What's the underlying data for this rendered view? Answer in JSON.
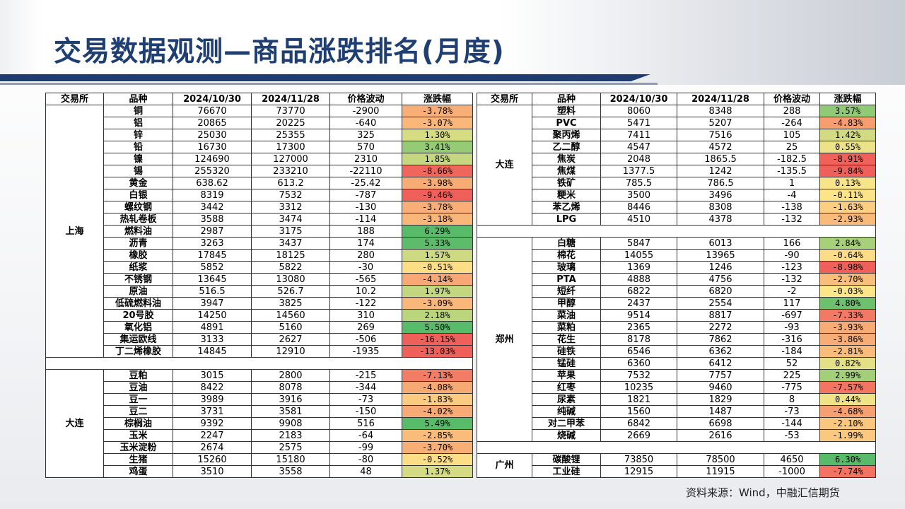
{
  "title": "交易数据观测—商品涨跌排名(月度)",
  "source": "资料来源：Wind，中融汇信期货",
  "headers": [
    "交易所",
    "品种",
    "2024/10/30",
    "2024/11/28",
    "价格波动",
    "涨跌幅"
  ],
  "colors": {
    "up": "#e84c3d",
    "down": "#57bb6a",
    "title": "#1f3f73"
  },
  "left": {
    "groups": [
      {
        "exchange": "上海",
        "rows": [
          {
            "name": "铜",
            "p1": "76670",
            "p2": "73770",
            "diff": "-2900",
            "chg": "-3.78%",
            "pct": -3.78
          },
          {
            "name": "铝",
            "p1": "20865",
            "p2": "20225",
            "diff": "-640",
            "chg": "-3.07%",
            "pct": -3.07
          },
          {
            "name": "锌",
            "p1": "25030",
            "p2": "25355",
            "diff": "325",
            "chg": "1.30%",
            "pct": 1.3
          },
          {
            "name": "铅",
            "p1": "16730",
            "p2": "17300",
            "diff": "570",
            "chg": "3.41%",
            "pct": 3.41
          },
          {
            "name": "镍",
            "p1": "124690",
            "p2": "127000",
            "diff": "2310",
            "chg": "1.85%",
            "pct": 1.85
          },
          {
            "name": "锡",
            "p1": "255320",
            "p2": "233210",
            "diff": "-22110",
            "chg": "-8.66%",
            "pct": -8.66
          },
          {
            "name": "黄金",
            "p1": "638.62",
            "p2": "613.2",
            "diff": "-25.42",
            "chg": "-3.98%",
            "pct": -3.98
          },
          {
            "name": "白银",
            "p1": "8319",
            "p2": "7532",
            "diff": "-787",
            "chg": "-9.46%",
            "pct": -9.46
          },
          {
            "name": "螺纹钢",
            "p1": "3442",
            "p2": "3312",
            "diff": "-130",
            "chg": "-3.78%",
            "pct": -3.78
          },
          {
            "name": "热轧卷板",
            "p1": "3588",
            "p2": "3474",
            "diff": "-114",
            "chg": "-3.18%",
            "pct": -3.18
          },
          {
            "name": "燃料油",
            "p1": "2987",
            "p2": "3175",
            "diff": "188",
            "chg": "6.29%",
            "pct": 6.29
          },
          {
            "name": "沥青",
            "p1": "3263",
            "p2": "3437",
            "diff": "174",
            "chg": "5.33%",
            "pct": 5.33
          },
          {
            "name": "橡胶",
            "p1": "17845",
            "p2": "18125",
            "diff": "280",
            "chg": "1.57%",
            "pct": 1.57
          },
          {
            "name": "纸浆",
            "p1": "5852",
            "p2": "5822",
            "diff": "-30",
            "chg": "-0.51%",
            "pct": -0.51
          },
          {
            "name": "不锈钢",
            "p1": "13645",
            "p2": "13080",
            "diff": "-565",
            "chg": "-4.14%",
            "pct": -4.14
          },
          {
            "name": "原油",
            "p1": "516.5",
            "p2": "526.7",
            "diff": "10.2",
            "chg": "1.97%",
            "pct": 1.97
          },
          {
            "name": "低硫燃料油",
            "p1": "3947",
            "p2": "3825",
            "diff": "-122",
            "chg": "-3.09%",
            "pct": -3.09
          },
          {
            "name": "20号胶",
            "p1": "14250",
            "p2": "14560",
            "diff": "310",
            "chg": "2.18%",
            "pct": 2.18
          },
          {
            "name": "氧化铝",
            "p1": "4891",
            "p2": "5160",
            "diff": "269",
            "chg": "5.50%",
            "pct": 5.5
          },
          {
            "name": "集运欧线",
            "p1": "3133",
            "p2": "2627",
            "diff": "-506",
            "chg": "-16.15%",
            "pct": -16.15
          },
          {
            "name": "丁二烯橡胶",
            "p1": "14845",
            "p2": "12910",
            "diff": "-1935",
            "chg": "-13.03%",
            "pct": -13.03
          }
        ]
      },
      {
        "exchange": "大连",
        "rows": [
          {
            "name": "豆粕",
            "p1": "3015",
            "p2": "2800",
            "diff": "-215",
            "chg": "-7.13%",
            "pct": -7.13
          },
          {
            "name": "豆油",
            "p1": "8422",
            "p2": "8078",
            "diff": "-344",
            "chg": "-4.08%",
            "pct": -4.08
          },
          {
            "name": "豆一",
            "p1": "3989",
            "p2": "3916",
            "diff": "-73",
            "chg": "-1.83%",
            "pct": -1.83
          },
          {
            "name": "豆二",
            "p1": "3731",
            "p2": "3581",
            "diff": "-150",
            "chg": "-4.02%",
            "pct": -4.02
          },
          {
            "name": "棕榈油",
            "p1": "9392",
            "p2": "9908",
            "diff": "516",
            "chg": "5.49%",
            "pct": 5.49
          },
          {
            "name": "玉米",
            "p1": "2247",
            "p2": "2183",
            "diff": "-64",
            "chg": "-2.85%",
            "pct": -2.85
          },
          {
            "name": "玉米淀粉",
            "p1": "2674",
            "p2": "2575",
            "diff": "-99",
            "chg": "-3.70%",
            "pct": -3.7
          },
          {
            "name": "生猪",
            "p1": "15260",
            "p2": "15180",
            "diff": "-80",
            "chg": "-0.52%",
            "pct": -0.52
          },
          {
            "name": "鸡蛋",
            "p1": "3510",
            "p2": "3558",
            "diff": "48",
            "chg": "1.37%",
            "pct": 1.37
          }
        ]
      }
    ]
  },
  "right": {
    "groups": [
      {
        "exchange": "大连",
        "rows": [
          {
            "name": "塑料",
            "p1": "8060",
            "p2": "8348",
            "diff": "288",
            "chg": "3.57%",
            "pct": 3.57
          },
          {
            "name": "PVC",
            "p1": "5471",
            "p2": "5207",
            "diff": "-264",
            "chg": "-4.83%",
            "pct": -4.83
          },
          {
            "name": "聚丙烯",
            "p1": "7411",
            "p2": "7516",
            "diff": "105",
            "chg": "1.42%",
            "pct": 1.42
          },
          {
            "name": "乙二醇",
            "p1": "4547",
            "p2": "4572",
            "diff": "25",
            "chg": "0.55%",
            "pct": 0.55
          },
          {
            "name": "焦炭",
            "p1": "2048",
            "p2": "1865.5",
            "diff": "-182.5",
            "chg": "-8.91%",
            "pct": -8.91
          },
          {
            "name": "焦煤",
            "p1": "1377.5",
            "p2": "1242",
            "diff": "-135.5",
            "chg": "-9.84%",
            "pct": -9.84
          },
          {
            "name": "铁矿",
            "p1": "785.5",
            "p2": "786.5",
            "diff": "1",
            "chg": "0.13%",
            "pct": 0.13
          },
          {
            "name": "粳米",
            "p1": "3500",
            "p2": "3496",
            "diff": "-4",
            "chg": "-0.11%",
            "pct": -0.11
          },
          {
            "name": "苯乙烯",
            "p1": "8446",
            "p2": "8308",
            "diff": "-138",
            "chg": "-1.63%",
            "pct": -1.63
          },
          {
            "name": "LPG",
            "p1": "4510",
            "p2": "4378",
            "diff": "-132",
            "chg": "-2.93%",
            "pct": -2.93
          }
        ]
      },
      {
        "exchange": "郑州",
        "rows": [
          {
            "name": "白糖",
            "p1": "5847",
            "p2": "6013",
            "diff": "166",
            "chg": "2.84%",
            "pct": 2.84
          },
          {
            "name": "棉花",
            "p1": "14055",
            "p2": "13965",
            "diff": "-90",
            "chg": "-0.64%",
            "pct": -0.64
          },
          {
            "name": "玻璃",
            "p1": "1369",
            "p2": "1246",
            "diff": "-123",
            "chg": "-8.98%",
            "pct": -8.98
          },
          {
            "name": "PTA",
            "p1": "4888",
            "p2": "4756",
            "diff": "-132",
            "chg": "-2.70%",
            "pct": -2.7
          },
          {
            "name": "短纤",
            "p1": "6822",
            "p2": "6820",
            "diff": "-2",
            "chg": "-0.03%",
            "pct": -0.03
          },
          {
            "name": "甲醇",
            "p1": "2437",
            "p2": "2554",
            "diff": "117",
            "chg": "4.80%",
            "pct": 4.8
          },
          {
            "name": "菜油",
            "p1": "9514",
            "p2": "8817",
            "diff": "-697",
            "chg": "-7.33%",
            "pct": -7.33
          },
          {
            "name": "菜粕",
            "p1": "2365",
            "p2": "2272",
            "diff": "-93",
            "chg": "-3.93%",
            "pct": -3.93
          },
          {
            "name": "花生",
            "p1": "8178",
            "p2": "7862",
            "diff": "-316",
            "chg": "-3.86%",
            "pct": -3.86
          },
          {
            "name": "硅铁",
            "p1": "6546",
            "p2": "6362",
            "diff": "-184",
            "chg": "-2.81%",
            "pct": -2.81
          },
          {
            "name": "锰硅",
            "p1": "6360",
            "p2": "6412",
            "diff": "52",
            "chg": "0.82%",
            "pct": 0.82
          },
          {
            "name": "苹果",
            "p1": "7532",
            "p2": "7757",
            "diff": "225",
            "chg": "2.99%",
            "pct": 2.99
          },
          {
            "name": "红枣",
            "p1": "10235",
            "p2": "9460",
            "diff": "-775",
            "chg": "-7.57%",
            "pct": -7.57
          },
          {
            "name": "尿素",
            "p1": "1821",
            "p2": "1829",
            "diff": "8",
            "chg": "0.44%",
            "pct": 0.44
          },
          {
            "name": "纯碱",
            "p1": "1560",
            "p2": "1487",
            "diff": "-73",
            "chg": "-4.68%",
            "pct": -4.68
          },
          {
            "name": "对二甲苯",
            "p1": "6842",
            "p2": "6698",
            "diff": "-144",
            "chg": "-2.10%",
            "pct": -2.1
          },
          {
            "name": "烧碱",
            "p1": "2669",
            "p2": "2616",
            "diff": "-53",
            "chg": "-1.99%",
            "pct": -1.99
          }
        ]
      },
      {
        "exchange": "广州",
        "rows": [
          {
            "name": "碳酸锂",
            "p1": "73850",
            "p2": "78500",
            "diff": "4650",
            "chg": "6.30%",
            "pct": 6.3
          },
          {
            "name": "工业硅",
            "p1": "12915",
            "p2": "11915",
            "diff": "-1000",
            "chg": "-7.74%",
            "pct": -7.74
          }
        ]
      }
    ]
  }
}
